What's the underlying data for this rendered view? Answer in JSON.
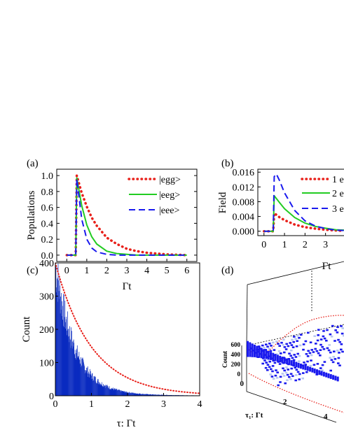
{
  "chart_data": [
    {
      "panel": "(a)",
      "type": "line",
      "title": "",
      "xlabel": "Γt",
      "ylabel": "Populations",
      "xlim": [
        -0.5,
        6.5
      ],
      "ylim": [
        -0.08,
        1.08
      ],
      "x_ticks": [
        "0",
        "1",
        "2",
        "3",
        "4",
        "5",
        "6"
      ],
      "y_ticks": [
        "0.0",
        "0.2",
        "0.4",
        "0.6",
        "0.8",
        "1.0"
      ],
      "legend_position": "top-right",
      "grid": false,
      "series": [
        {
          "name": "|egg>",
          "color": "#e8201a",
          "style": "dotted",
          "x": [
            0,
            0.45,
            0.5,
            0.75,
            1.0,
            1.25,
            1.5,
            2.0,
            2.5,
            3.0,
            3.5,
            4.0,
            5.0,
            6.0
          ],
          "y": [
            0,
            0,
            1.0,
            0.78,
            0.61,
            0.47,
            0.37,
            0.22,
            0.14,
            0.08,
            0.05,
            0.03,
            0.01,
            0.0
          ]
        },
        {
          "name": "|eeg>",
          "color": "#22cc22",
          "style": "solid",
          "x": [
            0,
            0.45,
            0.5,
            0.75,
            1.0,
            1.25,
            1.5,
            2.0,
            2.5,
            3.0,
            3.5,
            4.0,
            5.0,
            6.0
          ],
          "y": [
            0,
            0,
            0.97,
            0.62,
            0.38,
            0.23,
            0.14,
            0.05,
            0.02,
            0.01,
            0.0,
            0.0,
            0.0,
            0.0
          ]
        },
        {
          "name": "|eee>",
          "color": "#1a1aee",
          "style": "dashed",
          "x": [
            0,
            0.45,
            0.5,
            0.75,
            1.0,
            1.25,
            1.5,
            2.0,
            2.5,
            3.0,
            4.0,
            6.0
          ],
          "y": [
            0,
            0,
            0.96,
            0.45,
            0.2,
            0.09,
            0.04,
            0.01,
            0.0,
            0.0,
            0.0,
            0.0
          ]
        }
      ]
    },
    {
      "panel": "(b)",
      "type": "line",
      "title": "",
      "xlabel": "Γt",
      "ylabel": "Field",
      "xlim": [
        -0.3,
        3.9
      ],
      "ylim": [
        -0.0012,
        0.0168
      ],
      "x_ticks": [
        "0",
        "1",
        "2",
        "3"
      ],
      "y_ticks": [
        "0.000",
        "0.004",
        "0.008",
        "0.012",
        "0.016"
      ],
      "legend_position": "top-right",
      "legend_entries": [
        "1 e",
        "2 e",
        "3 e"
      ],
      "grid": false,
      "series": [
        {
          "name": "1 e",
          "color": "#e8201a",
          "style": "dotted",
          "x": [
            0,
            0.45,
            0.5,
            0.75,
            1.0,
            1.5,
            2.0,
            2.5,
            3.0,
            3.5,
            3.9
          ],
          "y": [
            0,
            0,
            0.0049,
            0.0038,
            0.003,
            0.0018,
            0.0011,
            0.0007,
            0.0004,
            0.0002,
            0.0001
          ]
        },
        {
          "name": "2 e",
          "color": "#22cc22",
          "style": "solid",
          "x": [
            0,
            0.45,
            0.5,
            0.75,
            1.0,
            1.5,
            2.0,
            2.5,
            3.0,
            3.5,
            3.9
          ],
          "y": [
            0,
            0,
            0.0096,
            0.0078,
            0.0061,
            0.0037,
            0.0022,
            0.0013,
            0.0008,
            0.0004,
            0.0003
          ]
        },
        {
          "name": "3 e",
          "color": "#1a1aee",
          "style": "dashed",
          "x": [
            0,
            0.45,
            0.5,
            0.6,
            0.75,
            1.0,
            1.5,
            2.0,
            2.5,
            3.0,
            3.5,
            3.9
          ],
          "y": [
            0,
            0,
            0.0148,
            0.0155,
            0.0138,
            0.0104,
            0.0056,
            0.0028,
            0.0014,
            0.0007,
            0.0003,
            0.0002
          ]
        }
      ]
    },
    {
      "panel": "(c)",
      "type": "bar",
      "title": "",
      "xlabel": "τ: Γt",
      "ylabel": "Count",
      "xlim": [
        0,
        4
      ],
      "ylim": [
        0,
        400
      ],
      "x_ticks": [
        "0",
        "1",
        "2",
        "3",
        "4"
      ],
      "y_ticks": [
        "0",
        "100",
        "200",
        "300",
        "400"
      ],
      "grid": false,
      "histogram": {
        "color": "#0a2bc0",
        "bin_width": 0.01,
        "peak": 385,
        "decay_rate": 1.9,
        "floor": 4
      },
      "fit_curve": {
        "color": "#e8201a",
        "style": "dotted",
        "amplitude": 400,
        "decay_rate": 1.0
      }
    },
    {
      "panel": "(d)",
      "type": "heatmap",
      "title": "",
      "xlabel": "τ₁: Γt",
      "ylabel": "",
      "zlabel": "Count",
      "x_ticks": [
        "2",
        "4"
      ],
      "z_ticks": [
        "0",
        "200",
        "400",
        "600"
      ],
      "extra_tick": "0",
      "grid": false,
      "color": "#1a1aee",
      "fit_color": "#e8201a"
    }
  ]
}
